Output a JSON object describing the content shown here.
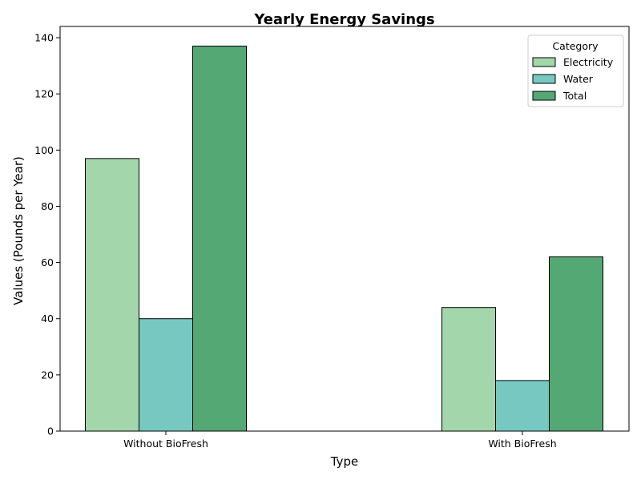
{
  "chart_data": {
    "type": "bar",
    "title": "Yearly Energy Savings",
    "xlabel": "Type",
    "ylabel": "Values (Pounds per Year)",
    "categories": [
      "Without BioFresh",
      "With BioFresh"
    ],
    "series": [
      {
        "name": "Electricity",
        "values": [
          97,
          44
        ],
        "color": "#a3d6ab"
      },
      {
        "name": "Water",
        "values": [
          40,
          18
        ],
        "color": "#77c8c1"
      },
      {
        "name": "Total",
        "values": [
          137,
          62
        ],
        "color": "#53a874"
      }
    ],
    "ylim": [
      0,
      144
    ],
    "yticks": [
      0,
      20,
      40,
      60,
      80,
      100,
      120,
      140
    ],
    "grid": false,
    "legend": {
      "title": "Category",
      "placement": "top-right"
    }
  }
}
